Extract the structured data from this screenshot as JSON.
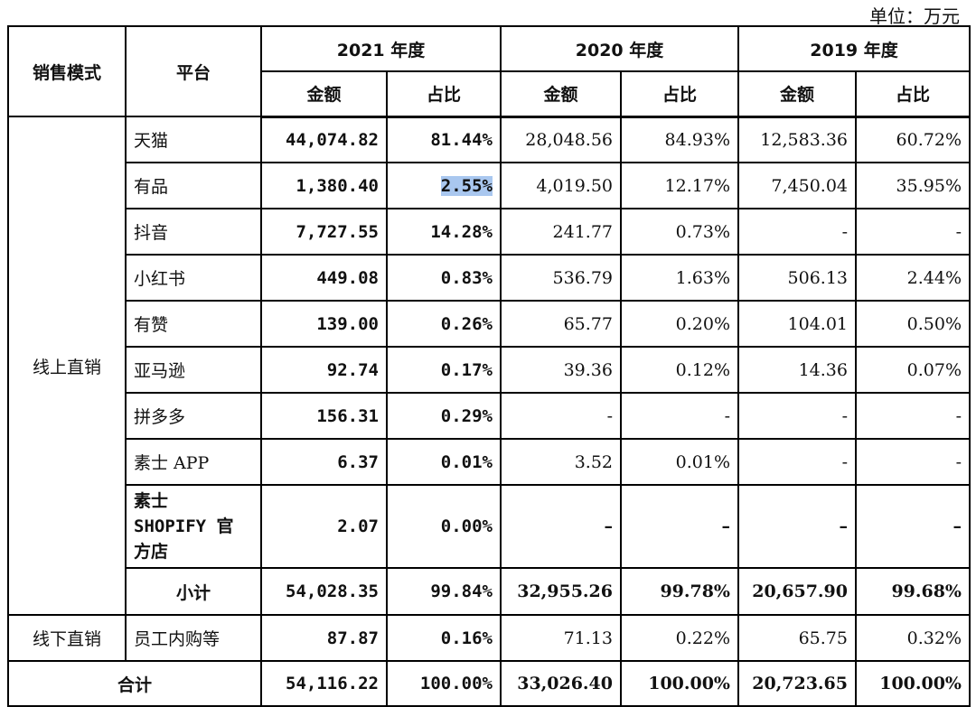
{
  "unit_label": "单位：万元",
  "header": {
    "sales_mode": "销售模式",
    "platform": "平台",
    "years": [
      "2021 年度",
      "2020 年度",
      "2019 年度"
    ],
    "amount": "金额",
    "ratio": "占比"
  },
  "mode_online": "线上直销",
  "rows": [
    {
      "platform": "天猫",
      "v": [
        "44,074.82",
        "81.44%",
        "28,048.56",
        "84.93%",
        "12,583.36",
        "60.72%"
      ]
    },
    {
      "platform": "有品",
      "v": [
        "1,380.40",
        "2.55%",
        "4,019.50",
        "12.17%",
        "7,450.04",
        "35.95%"
      ]
    },
    {
      "platform": "抖音",
      "v": [
        "7,727.55",
        "14.28%",
        "241.77",
        "0.73%",
        "-",
        "-"
      ]
    },
    {
      "platform": "小红书",
      "v": [
        "449.08",
        "0.83%",
        "536.79",
        "1.63%",
        "506.13",
        "2.44%"
      ]
    },
    {
      "platform": "有赞",
      "v": [
        "139.00",
        "0.26%",
        "65.77",
        "0.20%",
        "104.01",
        "0.50%"
      ]
    },
    {
      "platform": "亚马逊",
      "v": [
        "92.74",
        "0.17%",
        "39.36",
        "0.12%",
        "14.36",
        "0.07%"
      ]
    },
    {
      "platform": "拼多多",
      "v": [
        "156.31",
        "0.29%",
        "-",
        "-",
        "-",
        "-"
      ]
    },
    {
      "platform": "素士 APP",
      "v": [
        "6.37",
        "0.01%",
        "3.52",
        "0.01%",
        "-",
        "-"
      ]
    }
  ],
  "shopify_row": {
    "platform_lines": [
      "素士",
      "SHOPIFY 官",
      "方店"
    ],
    "v": [
      "2.07",
      "0.00%",
      "–",
      "–",
      "–",
      "–"
    ]
  },
  "subtotal": {
    "label": "小计",
    "v": [
      "54,028.35",
      "99.84%",
      "32,955.26",
      "99.78%",
      "20,657.90",
      "99.68%"
    ]
  },
  "offline": {
    "mode": "线下直销",
    "platform": "员工内购等",
    "v": [
      "87.87",
      "0.16%",
      "71.13",
      "0.22%",
      "65.75",
      "0.32%"
    ]
  },
  "total": {
    "label": "合计",
    "v": [
      "54,116.22",
      "100.00%",
      "33,026.40",
      "100.00%",
      "20,723.65",
      "100.00%"
    ]
  }
}
